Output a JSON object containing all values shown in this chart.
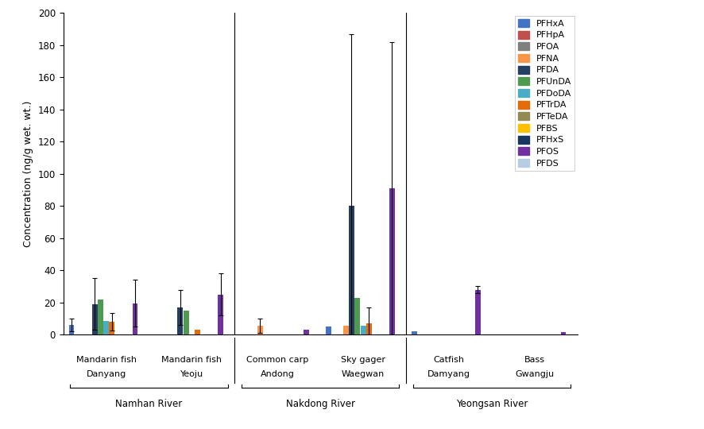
{
  "ylabel": "Concentration (ng/g wet. wt.)",
  "ylim": [
    0,
    200
  ],
  "yticks": [
    0,
    20,
    40,
    60,
    80,
    100,
    120,
    140,
    160,
    180,
    200
  ],
  "compounds": [
    "PFHxA",
    "PFHpA",
    "PFOA",
    "PFNA",
    "PFDA",
    "PFUnDA",
    "PFDoDA",
    "PFTrDA",
    "PFTeDA",
    "PFBS",
    "PFHxS",
    "PFOS",
    "PFDS"
  ],
  "colors": [
    "#4472C4",
    "#C0504D",
    "#7F7F7F",
    "#F79646",
    "#243F60",
    "#4E9A51",
    "#4BACC6",
    "#E36C09",
    "#938953",
    "#FFC000",
    "#17375E",
    "#7030A0",
    "#B8CCE4"
  ],
  "groups": [
    {
      "fish": "Mandarin fish",
      "location": "Danyang"
    },
    {
      "fish": "Mandarin fish",
      "location": "Yeoju"
    },
    {
      "fish": "Common carp",
      "location": "Andong"
    },
    {
      "fish": "Sky gager",
      "location": "Waegwan"
    },
    {
      "fish": "Catfish",
      "location": "Damyang"
    },
    {
      "fish": "Bass",
      "location": "Gwangju"
    }
  ],
  "values": [
    [
      6.0,
      0.3,
      0.3,
      0.3,
      19.0,
      22.0,
      8.5,
      8.0,
      0.3,
      0.3,
      0.3,
      19.5,
      0.3
    ],
    [
      0.3,
      0.3,
      0.3,
      0.3,
      17.0,
      15.0,
      0.3,
      3.0,
      0.3,
      0.3,
      0.3,
      25.0,
      0.3
    ],
    [
      0.3,
      0.3,
      0.3,
      5.5,
      0.3,
      0.3,
      0.3,
      0.3,
      0.3,
      0.3,
      0.3,
      3.0,
      0.3
    ],
    [
      5.0,
      0.3,
      0.3,
      5.5,
      80.0,
      23.0,
      5.5,
      7.0,
      0.3,
      0.3,
      0.3,
      91.0,
      0.3
    ],
    [
      2.0,
      0.3,
      0.3,
      0.3,
      0.3,
      0.3,
      0.3,
      0.3,
      0.3,
      0.3,
      0.3,
      28.0,
      0.3
    ],
    [
      0.3,
      0.3,
      0.3,
      0.3,
      0.3,
      0.3,
      0.3,
      0.3,
      0.3,
      0.3,
      0.3,
      1.5,
      0.3
    ]
  ],
  "errors": [
    [
      4.0,
      0.0,
      0.0,
      0.0,
      16.0,
      0.0,
      0.0,
      5.5,
      0.0,
      0.0,
      0.0,
      14.5,
      0.0
    ],
    [
      0.0,
      0.0,
      0.0,
      0.0,
      11.0,
      0.0,
      0.0,
      0.0,
      0.0,
      0.0,
      0.0,
      13.0,
      0.0
    ],
    [
      0.0,
      0.0,
      0.0,
      4.5,
      0.0,
      0.0,
      0.0,
      0.0,
      0.0,
      0.0,
      0.0,
      0.0,
      0.0
    ],
    [
      0.0,
      0.0,
      0.0,
      0.0,
      107.0,
      0.0,
      0.0,
      10.0,
      0.0,
      0.0,
      0.0,
      91.0,
      0.0
    ],
    [
      0.0,
      0.0,
      0.0,
      0.0,
      0.0,
      0.0,
      0.0,
      0.0,
      0.0,
      0.0,
      0.0,
      2.0,
      0.0
    ],
    [
      0.0,
      0.0,
      0.0,
      0.0,
      0.0,
      0.0,
      0.0,
      0.0,
      0.0,
      0.0,
      0.0,
      0.0,
      0.0
    ]
  ],
  "river_groups": [
    {
      "name": "Namhan River",
      "groups": [
        0,
        1
      ]
    },
    {
      "name": "Nakdong River",
      "groups": [
        2,
        3
      ]
    },
    {
      "name": "Yeongsan River",
      "groups": [
        4,
        5
      ]
    }
  ],
  "separators_after": [
    1,
    3
  ]
}
